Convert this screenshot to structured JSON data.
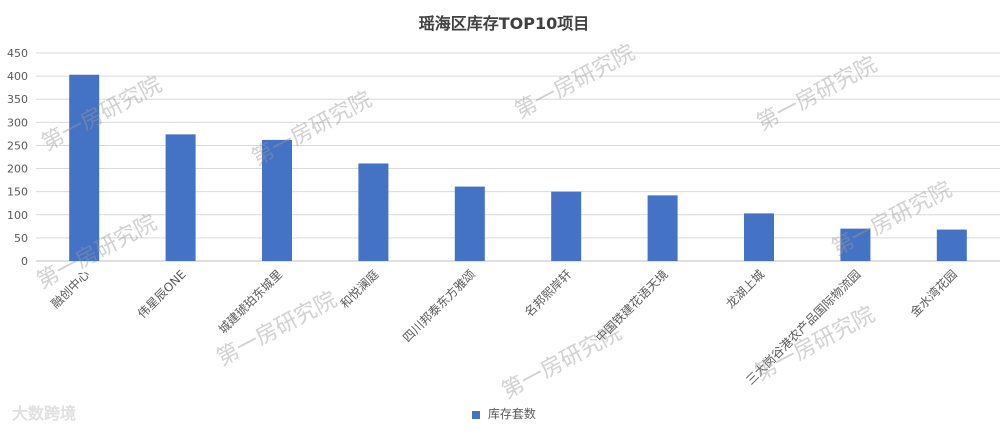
{
  "chart_data": {
    "type": "bar",
    "title": "瑶海区库存TOP10项目",
    "categories": [
      "融创中心",
      "伟星辰ONE",
      "城建琥珀东城里",
      "和悦澜庭",
      "四川邦泰东方雅颂",
      "名邦熙岸轩",
      "中国铁建花语天境",
      "龙湖上城",
      "三大岗谷港农产品国际物流园",
      "金水湾花园"
    ],
    "series": [
      {
        "name": "库存套数",
        "values": [
          403,
          274,
          262,
          211,
          161,
          150,
          142,
          103,
          70,
          68
        ],
        "color": "#4472C4"
      }
    ],
    "ylim": [
      0,
      450
    ],
    "yticks": [
      0,
      50,
      100,
      150,
      200,
      250,
      300,
      350,
      400,
      450
    ],
    "grid": true,
    "legend_position": "bottom"
  },
  "watermarks": [
    "第一房研究院",
    "第一房研究院",
    "第一房研究院",
    "第一房研究院",
    "第一房研究院",
    "第一房研究院",
    "第一房研究院",
    "第一房研究院",
    "第一房研究院"
  ],
  "corner_watermark": "大数跨境"
}
